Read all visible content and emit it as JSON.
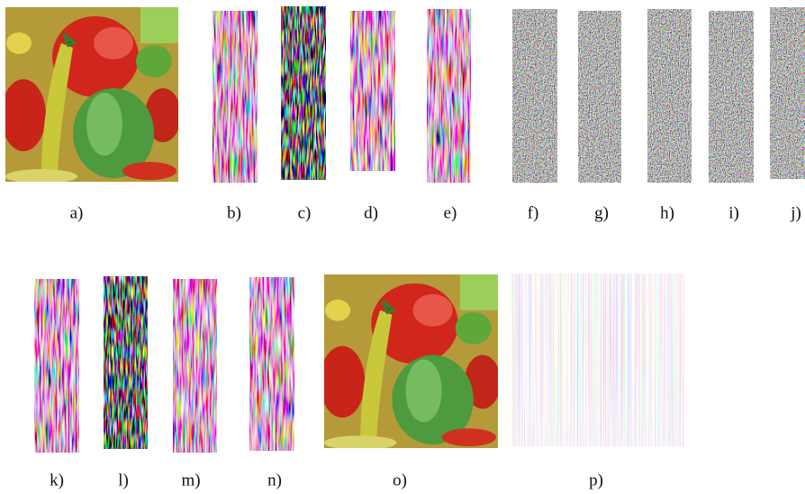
{
  "labels": [
    "a)",
    "b)",
    "c)",
    "d)",
    "e)",
    "f)",
    "g)",
    "h)",
    "i)",
    "j)",
    "k)",
    "l)",
    "m)",
    "n)",
    "o)",
    "p)"
  ]
}
